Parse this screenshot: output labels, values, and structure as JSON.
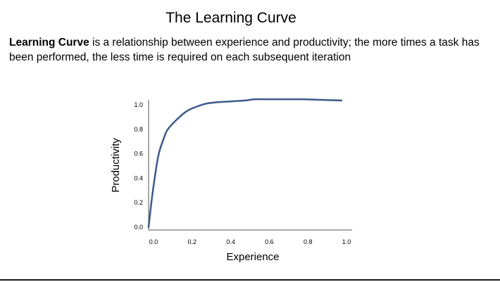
{
  "title": "The Learning Curve",
  "intro": {
    "term": "Learning Curve",
    "definition": " is a relationship between experience and productivity; the more times a task has been performed, the less time is required on each subsequent iteration"
  },
  "chart_data": {
    "type": "line",
    "title": "",
    "xlabel": "Experience",
    "ylabel": "Productivity",
    "xlim": [
      0.0,
      1.0
    ],
    "ylim": [
      0.0,
      1.0
    ],
    "x_ticks": [
      "0.0",
      "0.2",
      "0.4",
      "0.6",
      "0.8",
      "1.0"
    ],
    "y_ticks": [
      "0.0",
      "0.2",
      "0.4",
      "0.6",
      "0.8",
      "1.0"
    ],
    "grid": false,
    "legend": "none",
    "line_color": "#3d5a8c",
    "series": [
      {
        "x": [
          0.0,
          0.02,
          0.05,
          0.08,
          0.1,
          0.15,
          0.2,
          0.25,
          0.3,
          0.35,
          0.4,
          0.45,
          0.5,
          0.55,
          0.6,
          0.7,
          0.8,
          0.9,
          1.0
        ],
        "values": [
          0.0,
          0.27,
          0.58,
          0.73,
          0.8,
          0.885,
          0.95,
          0.985,
          1.01,
          1.02,
          1.025,
          1.03,
          1.035,
          1.045,
          1.045,
          1.045,
          1.045,
          1.04,
          1.035
        ]
      }
    ]
  }
}
